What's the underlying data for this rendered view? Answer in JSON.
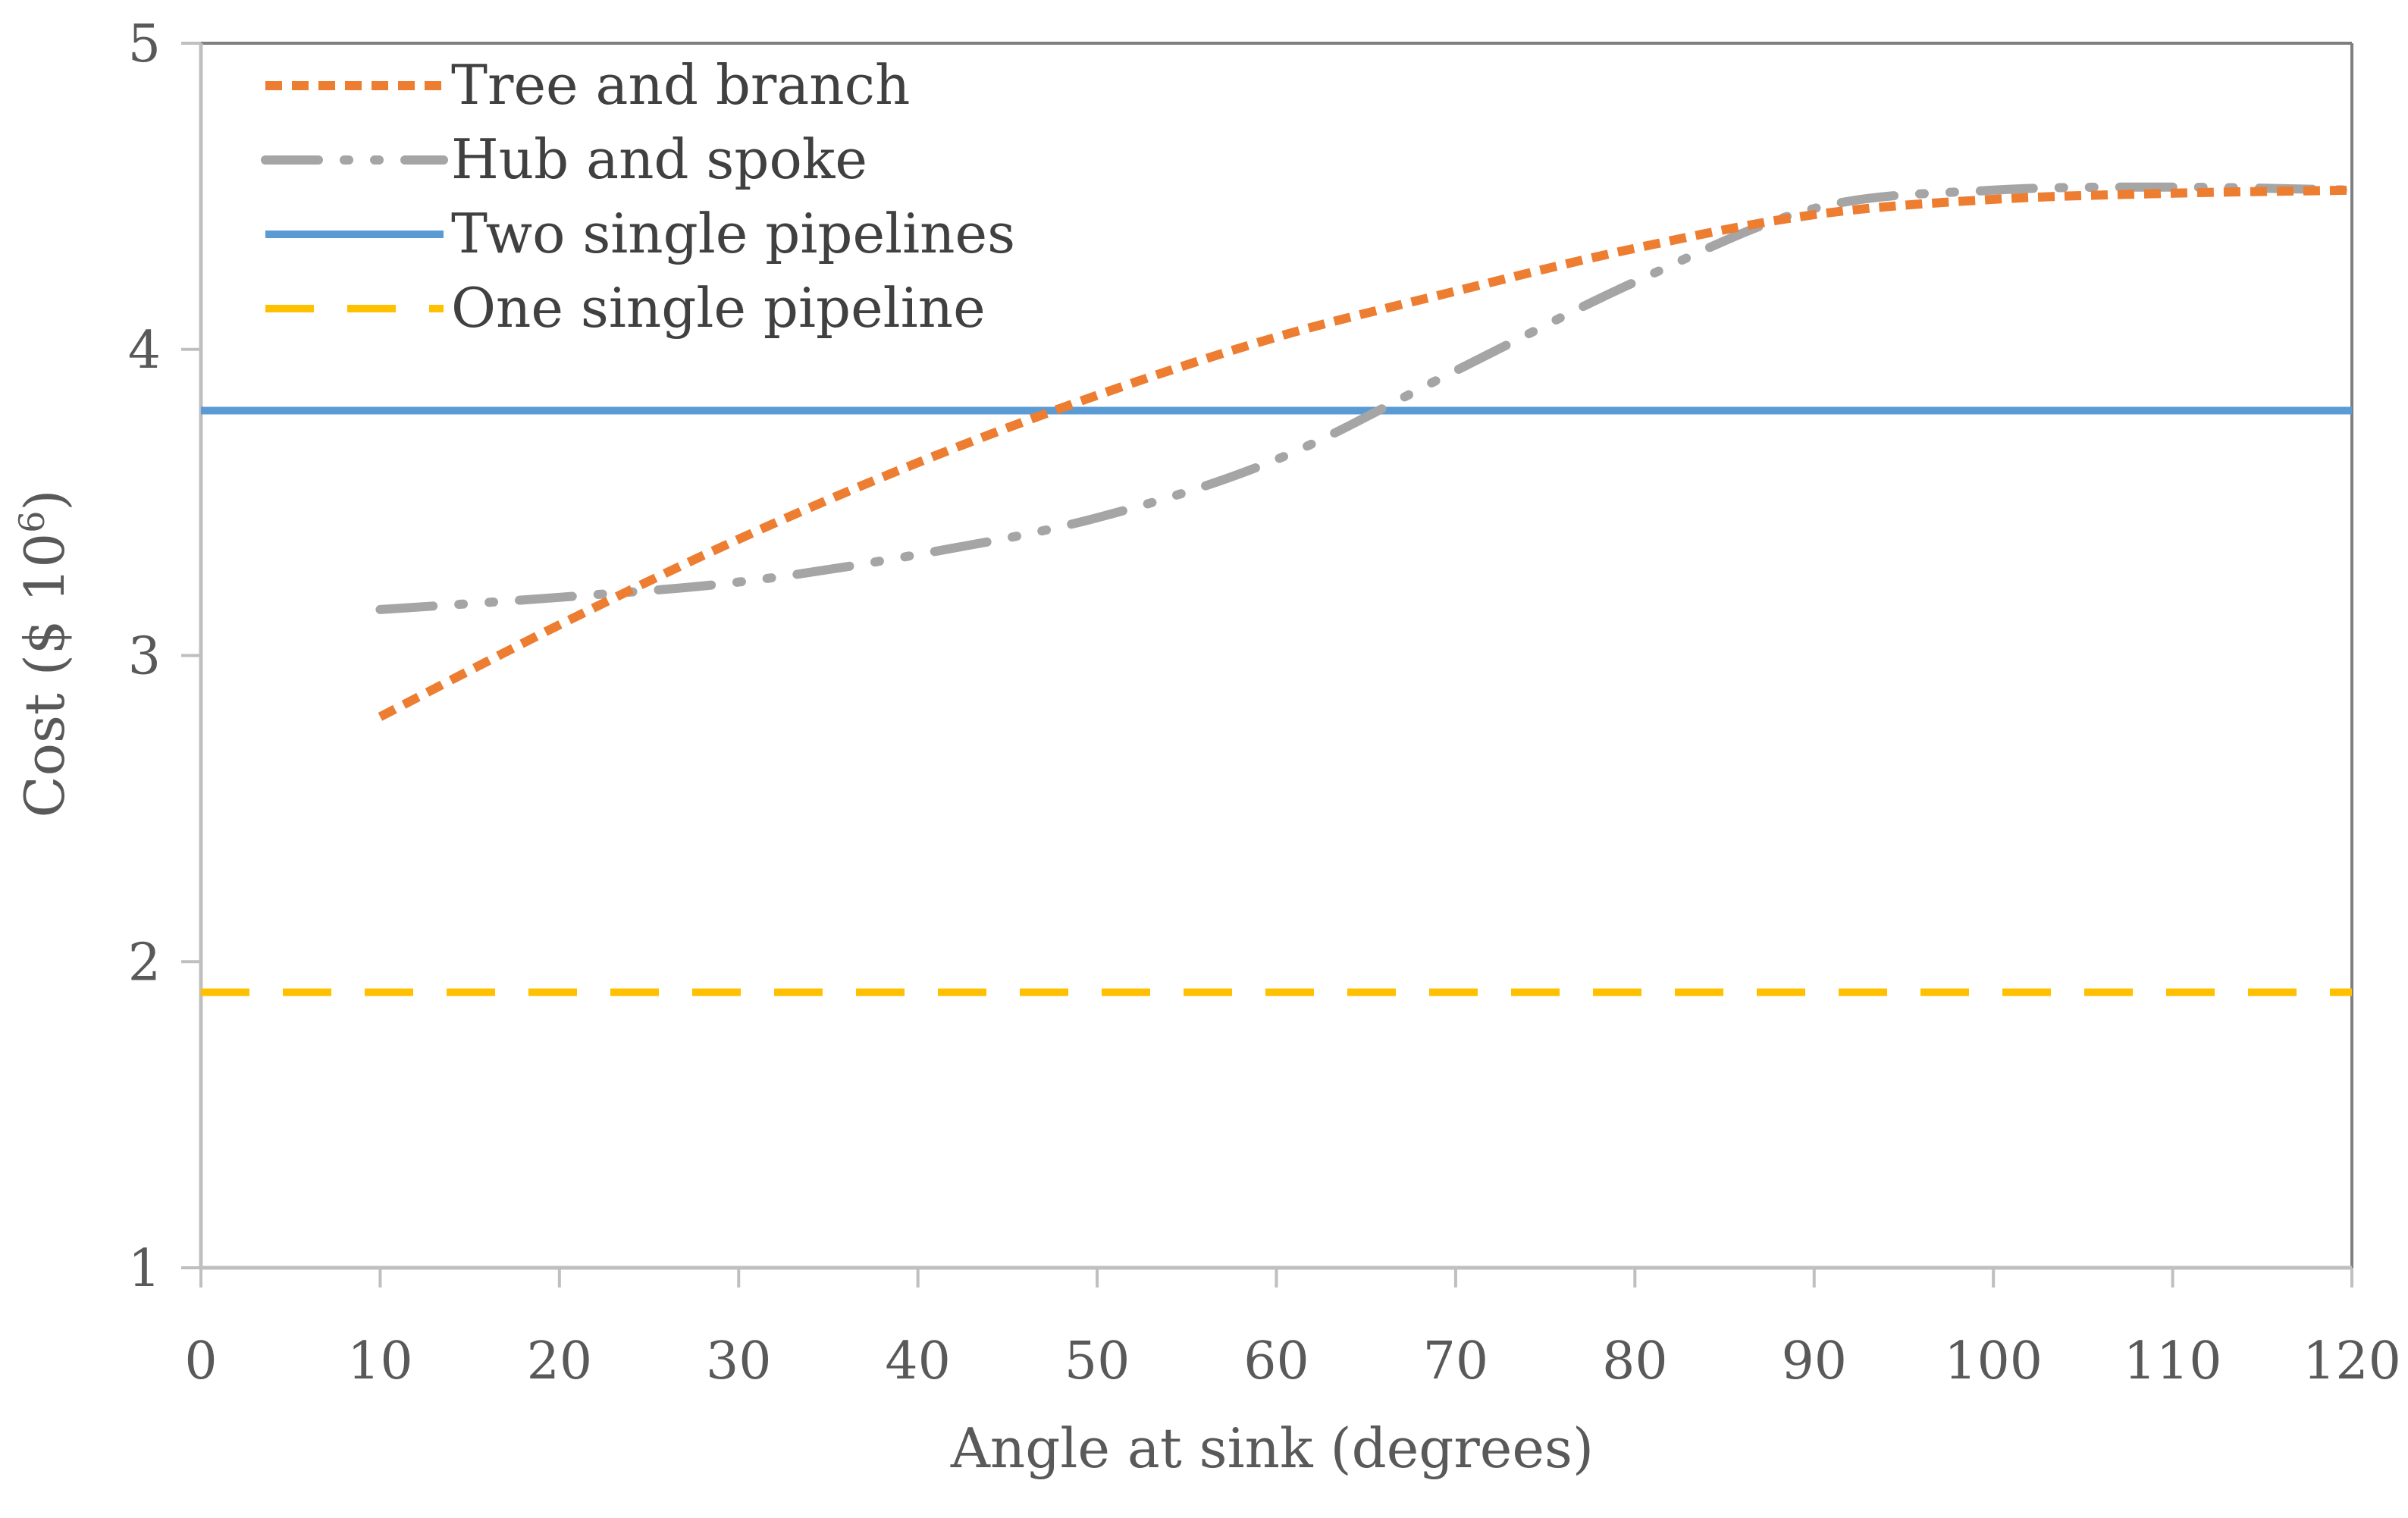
{
  "chart_data": {
    "type": "line",
    "title": "",
    "xlabel": "Angle at sink (degrees)",
    "ylabel": "Cost ($ 10",
    "ylabel_superscript": "6",
    "ylabel_suffix": ")",
    "xlim": [
      0,
      120
    ],
    "ylim": [
      1,
      5
    ],
    "xticks": [
      0,
      10,
      20,
      30,
      40,
      50,
      60,
      70,
      80,
      90,
      100,
      110,
      120
    ],
    "yticks": [
      1,
      2,
      3,
      4,
      5
    ],
    "grid": false,
    "legend_position": "top-left",
    "series": [
      {
        "name": "Tree and branch",
        "color": "#ED7D31",
        "style": "dotted",
        "x": [
          10,
          20,
          30,
          40,
          50,
          60,
          70,
          80,
          90,
          100,
          110,
          120
        ],
        "y": [
          2.8,
          3.1,
          3.38,
          3.63,
          3.85,
          4.04,
          4.19,
          4.33,
          4.44,
          4.49,
          4.51,
          4.52
        ]
      },
      {
        "name": "Hub and spoke",
        "color": "#A5A5A5",
        "style": "dash-dot-dot",
        "x": [
          10,
          20,
          30,
          40,
          50,
          60,
          70,
          80,
          90,
          100,
          110,
          120
        ],
        "y": [
          3.15,
          3.19,
          3.24,
          3.33,
          3.45,
          3.64,
          3.93,
          4.22,
          4.46,
          4.52,
          4.53,
          4.52
        ]
      },
      {
        "name": "Two single pipelines",
        "color": "#5B9BD5",
        "style": "solid",
        "x": [
          0,
          120
        ],
        "y": [
          3.8,
          3.8
        ]
      },
      {
        "name": "One single pipeline",
        "color": "#FFC000",
        "style": "dashed",
        "x": [
          0,
          120
        ],
        "y": [
          1.9,
          1.9
        ]
      }
    ]
  }
}
